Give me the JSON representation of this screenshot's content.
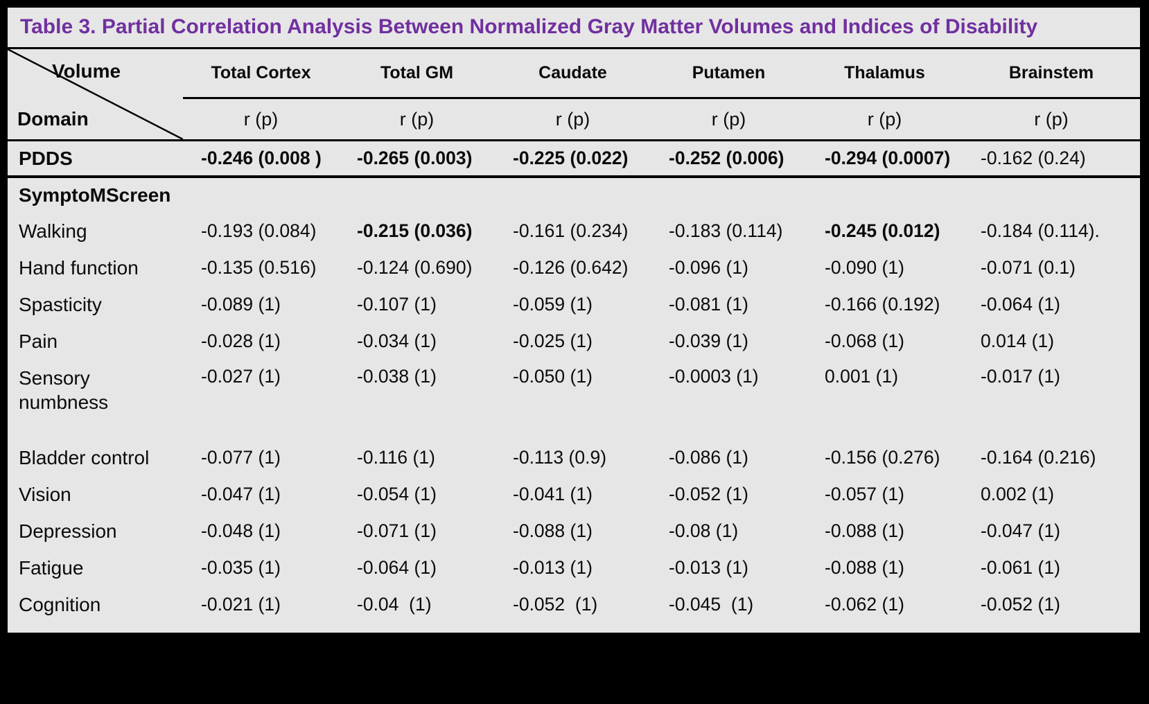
{
  "colors": {
    "title": "#7030A0",
    "table_bg": "#E7E6E6",
    "border": "#000000",
    "page_bg": "#000000"
  },
  "title": "Table 3. Partial Correlation Analysis Between Normalized Gray Matter Volumes and Indices of Disability",
  "header": {
    "corner_top": "Volume",
    "corner_bottom": "Domain",
    "columns": [
      "Total Cortex",
      "Total GM",
      "Caudate",
      "Putamen",
      "Thalamus",
      "Brainstem"
    ],
    "subheaders": [
      "r (p)",
      "r (p)",
      "r (p)",
      "r (p)",
      "r (p)",
      "r (p)"
    ]
  },
  "rows": [
    {
      "type": "data",
      "variant": "pdds",
      "label": "PDDS",
      "label_bold": true,
      "cells": [
        {
          "text": "-0.246 (0.008 )",
          "bold": true
        },
        {
          "text": "-0.265 (0.003)",
          "bold": true
        },
        {
          "text": "-0.225 (0.022)",
          "bold": true
        },
        {
          "text": "-0.252 (0.006)",
          "bold": true
        },
        {
          "text": "-0.294 (0.0007)",
          "bold": true
        },
        {
          "text": "-0.162 (0.24)",
          "bold": false
        }
      ]
    },
    {
      "type": "section",
      "label": "SymptoMScreen"
    },
    {
      "type": "data",
      "label": "Walking",
      "cells": [
        {
          "text": "-0.193 (0.084)",
          "bold": false
        },
        {
          "text": "-0.215 (0.036)",
          "bold": true
        },
        {
          "text": "-0.161 (0.234)",
          "bold": false
        },
        {
          "text": "-0.183 (0.114)",
          "bold": false
        },
        {
          "text": "-0.245 (0.012)",
          "bold": true
        },
        {
          "text": "-0.184 (0.114).",
          "bold": false
        }
      ]
    },
    {
      "type": "data",
      "label": "Hand function",
      "cells": [
        {
          "text": "-0.135 (0.516)",
          "bold": false
        },
        {
          "text": "-0.124 (0.690)",
          "bold": false
        },
        {
          "text": "-0.126 (0.642)",
          "bold": false
        },
        {
          "text": "-0.096 (1)",
          "bold": false
        },
        {
          "text": "-0.090 (1)",
          "bold": false
        },
        {
          "text": "-0.071 (0.1)",
          "bold": false
        }
      ]
    },
    {
      "type": "data",
      "label": "Spasticity",
      "cells": [
        {
          "text": "-0.089 (1)",
          "bold": false
        },
        {
          "text": "-0.107 (1)",
          "bold": false
        },
        {
          "text": "-0.059 (1)",
          "bold": false
        },
        {
          "text": "-0.081 (1)",
          "bold": false
        },
        {
          "text": "-0.166 (0.192)",
          "bold": false
        },
        {
          "text": "-0.064 (1)",
          "bold": false
        }
      ]
    },
    {
      "type": "data",
      "label": "Pain",
      "cells": [
        {
          "text": "-0.028 (1)",
          "bold": false
        },
        {
          "text": "-0.034 (1)",
          "bold": false
        },
        {
          "text": "-0.025 (1)",
          "bold": false
        },
        {
          "text": "-0.039 (1)",
          "bold": false
        },
        {
          "text": "-0.068 (1)",
          "bold": false
        },
        {
          "text": "0.014 (1)",
          "bold": false
        }
      ]
    },
    {
      "type": "data",
      "label": "Sensory\nnumbness",
      "tall": true,
      "cells": [
        {
          "text": "-0.027 (1)",
          "bold": false
        },
        {
          "text": "-0.038 (1)",
          "bold": false
        },
        {
          "text": "-0.050 (1)",
          "bold": false
        },
        {
          "text": "-0.0003 (1)",
          "bold": false
        },
        {
          "text": "0.001 (1)",
          "bold": false
        },
        {
          "text": "-0.017 (1)",
          "bold": false
        }
      ]
    },
    {
      "type": "data",
      "label": "Bladder control",
      "cells": [
        {
          "text": "-0.077 (1)",
          "bold": false
        },
        {
          "text": "-0.116 (1)",
          "bold": false
        },
        {
          "text": "-0.113 (0.9)",
          "bold": false
        },
        {
          "text": "-0.086 (1)",
          "bold": false
        },
        {
          "text": "-0.156 (0.276)",
          "bold": false
        },
        {
          "text": "-0.164 (0.216)",
          "bold": false
        }
      ]
    },
    {
      "type": "data",
      "label": "Vision",
      "cells": [
        {
          "text": "-0.047 (1)",
          "bold": false
        },
        {
          "text": "-0.054 (1)",
          "bold": false
        },
        {
          "text": "-0.041 (1)",
          "bold": false
        },
        {
          "text": "-0.052 (1)",
          "bold": false
        },
        {
          "text": "-0.057 (1)",
          "bold": false
        },
        {
          "text": "0.002 (1)",
          "bold": false
        }
      ]
    },
    {
      "type": "data",
      "label": "Depression",
      "cells": [
        {
          "text": "-0.048 (1)",
          "bold": false
        },
        {
          "text": "-0.071 (1)",
          "bold": false
        },
        {
          "text": "-0.088 (1)",
          "bold": false
        },
        {
          "text": "-0.08 (1)",
          "bold": false
        },
        {
          "text": "-0.088 (1)",
          "bold": false
        },
        {
          "text": "-0.047 (1)",
          "bold": false
        }
      ]
    },
    {
      "type": "data",
      "label": "Fatigue",
      "cells": [
        {
          "text": "-0.035 (1)",
          "bold": false
        },
        {
          "text": "-0.064 (1)",
          "bold": false
        },
        {
          "text": "-0.013 (1)",
          "bold": false
        },
        {
          "text": "-0.013 (1)",
          "bold": false
        },
        {
          "text": "-0.088 (1)",
          "bold": false
        },
        {
          "text": "-0.061 (1)",
          "bold": false
        }
      ]
    },
    {
      "type": "data",
      "label": "Cognition",
      "last": true,
      "cells": [
        {
          "text": "-0.021 (1)",
          "bold": false
        },
        {
          "text": "-0.04  (1)",
          "bold": false
        },
        {
          "text": "-0.052  (1)",
          "bold": false
        },
        {
          "text": "-0.045  (1)",
          "bold": false
        },
        {
          "text": "-0.062 (1)",
          "bold": false
        },
        {
          "text": "-0.052 (1)",
          "bold": false
        }
      ]
    }
  ]
}
